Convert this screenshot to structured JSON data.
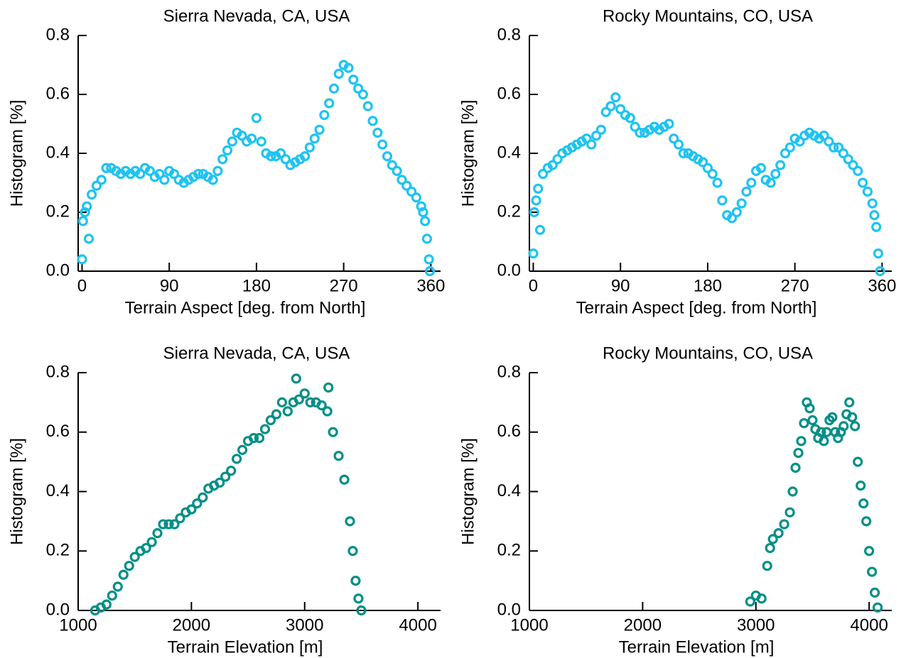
{
  "chart_data": [
    {
      "type": "scatter",
      "title": "Sierra Nevada, CA, USA",
      "x_label": "Terrain Aspect [deg. from North]",
      "y_label": "Histogram [%]",
      "color": "#1ec3f2",
      "x": [
        0,
        1,
        3,
        5,
        7,
        10,
        15,
        20,
        25,
        30,
        35,
        40,
        45,
        50,
        55,
        60,
        65,
        70,
        75,
        80,
        85,
        90,
        95,
        100,
        105,
        110,
        115,
        120,
        125,
        130,
        135,
        140,
        145,
        150,
        155,
        160,
        165,
        170,
        175,
        180,
        185,
        190,
        195,
        200,
        205,
        210,
        215,
        220,
        225,
        230,
        235,
        240,
        245,
        250,
        255,
        260,
        265,
        270,
        275,
        280,
        285,
        290,
        295,
        300,
        305,
        310,
        315,
        320,
        325,
        330,
        335,
        340,
        345,
        350,
        352,
        354,
        356,
        358,
        359
      ],
      "values": [
        0.04,
        0.17,
        0.2,
        0.22,
        0.11,
        0.26,
        0.29,
        0.31,
        0.35,
        0.35,
        0.34,
        0.33,
        0.34,
        0.33,
        0.34,
        0.33,
        0.35,
        0.34,
        0.32,
        0.33,
        0.31,
        0.34,
        0.33,
        0.31,
        0.3,
        0.31,
        0.32,
        0.33,
        0.33,
        0.32,
        0.31,
        0.34,
        0.38,
        0.41,
        0.44,
        0.47,
        0.46,
        0.44,
        0.45,
        0.52,
        0.44,
        0.4,
        0.39,
        0.39,
        0.4,
        0.38,
        0.36,
        0.37,
        0.38,
        0.39,
        0.42,
        0.45,
        0.48,
        0.53,
        0.57,
        0.62,
        0.67,
        0.7,
        0.69,
        0.65,
        0.62,
        0.6,
        0.56,
        0.51,
        0.47,
        0.43,
        0.39,
        0.36,
        0.34,
        0.31,
        0.29,
        0.27,
        0.25,
        0.22,
        0.2,
        0.17,
        0.11,
        0.04,
        0.0
      ],
      "xlim": [
        -4,
        370
      ],
      "xticks": [
        0,
        90,
        180,
        270,
        360
      ],
      "ylim": [
        0,
        0.8
      ],
      "yticks": [
        {
          "value": 0,
          "label": "0.0"
        },
        0.2,
        0.4,
        0.6,
        0.8
      ]
    },
    {
      "type": "scatter",
      "title": "Rocky Mountains, CO, USA",
      "x_label": "Terrain Aspect [deg. from North]",
      "y_label": "Histogram [%]",
      "color": "#1ec3f2",
      "x": [
        0,
        1,
        3,
        5,
        7,
        10,
        15,
        20,
        25,
        30,
        35,
        40,
        45,
        50,
        55,
        60,
        65,
        70,
        75,
        80,
        85,
        90,
        95,
        100,
        105,
        110,
        115,
        120,
        125,
        130,
        135,
        140,
        145,
        150,
        155,
        160,
        165,
        170,
        175,
        180,
        185,
        190,
        195,
        200,
        205,
        210,
        215,
        220,
        225,
        230,
        235,
        240,
        245,
        250,
        255,
        260,
        265,
        270,
        275,
        280,
        285,
        290,
        295,
        300,
        305,
        310,
        315,
        320,
        325,
        330,
        335,
        340,
        345,
        350,
        352,
        354,
        356,
        358
      ],
      "values": [
        0.06,
        0.2,
        0.24,
        0.28,
        0.14,
        0.33,
        0.35,
        0.36,
        0.38,
        0.4,
        0.41,
        0.42,
        0.43,
        0.44,
        0.45,
        0.43,
        0.46,
        0.48,
        0.54,
        0.56,
        0.59,
        0.55,
        0.53,
        0.52,
        0.49,
        0.47,
        0.47,
        0.48,
        0.49,
        0.48,
        0.49,
        0.5,
        0.45,
        0.43,
        0.4,
        0.4,
        0.39,
        0.38,
        0.37,
        0.35,
        0.33,
        0.3,
        0.24,
        0.19,
        0.18,
        0.2,
        0.23,
        0.27,
        0.3,
        0.34,
        0.35,
        0.31,
        0.3,
        0.33,
        0.36,
        0.4,
        0.42,
        0.45,
        0.44,
        0.46,
        0.47,
        0.46,
        0.45,
        0.46,
        0.44,
        0.42,
        0.42,
        0.4,
        0.38,
        0.36,
        0.34,
        0.3,
        0.27,
        0.23,
        0.19,
        0.15,
        0.06,
        0.0
      ],
      "xlim": [
        -4,
        370
      ],
      "xticks": [
        0,
        90,
        180,
        270,
        360
      ],
      "ylim": [
        0,
        0.8
      ],
      "yticks": [
        {
          "value": 0,
          "label": "0.0"
        },
        0.2,
        0.4,
        0.6,
        0.8
      ]
    },
    {
      "type": "scatter",
      "title": "Sierra Nevada, CA, USA",
      "x_label": "Terrain Elevation [m]",
      "y_label": "Histogram [%]",
      "color": "#008f87",
      "x": [
        1150,
        1200,
        1250,
        1300,
        1350,
        1400,
        1450,
        1500,
        1550,
        1600,
        1650,
        1700,
        1750,
        1800,
        1850,
        1900,
        1950,
        2000,
        2050,
        2100,
        2150,
        2200,
        2250,
        2300,
        2350,
        2400,
        2450,
        2500,
        2550,
        2600,
        2650,
        2700,
        2750,
        2800,
        2850,
        2900,
        2925,
        2950,
        3000,
        3050,
        3100,
        3150,
        3200,
        3210,
        3250,
        3300,
        3350,
        3400,
        3425,
        3450,
        3475,
        3500
      ],
      "values": [
        0.0,
        0.01,
        0.02,
        0.05,
        0.08,
        0.12,
        0.15,
        0.18,
        0.2,
        0.21,
        0.23,
        0.26,
        0.29,
        0.29,
        0.29,
        0.31,
        0.33,
        0.34,
        0.36,
        0.38,
        0.41,
        0.42,
        0.43,
        0.45,
        0.47,
        0.51,
        0.54,
        0.57,
        0.58,
        0.58,
        0.61,
        0.64,
        0.66,
        0.7,
        0.67,
        0.7,
        0.78,
        0.71,
        0.73,
        0.7,
        0.7,
        0.69,
        0.67,
        0.75,
        0.6,
        0.52,
        0.44,
        0.3,
        0.2,
        0.1,
        0.04,
        0.0
      ],
      "xlim": [
        1000,
        4200
      ],
      "xticks": [
        1000,
        2000,
        3000,
        4000
      ],
      "ylim": [
        0,
        0.8
      ],
      "yticks": [
        {
          "value": 0,
          "label": "0.0"
        },
        0.2,
        0.4,
        0.6,
        0.8
      ]
    },
    {
      "type": "scatter",
      "title": "Rocky Mountains, CO, USA",
      "x_label": "Terrain Elevation [m]",
      "y_label": "Histogram [%]",
      "color": "#008f87",
      "x": [
        2950,
        3000,
        3050,
        3100,
        3125,
        3150,
        3200,
        3250,
        3300,
        3325,
        3350,
        3375,
        3400,
        3425,
        3450,
        3475,
        3500,
        3525,
        3550,
        3575,
        3600,
        3625,
        3650,
        3675,
        3700,
        3725,
        3750,
        3775,
        3800,
        3825,
        3850,
        3875,
        3900,
        3925,
        3950,
        3975,
        4000,
        4025,
        4050,
        4075
      ],
      "values": [
        0.03,
        0.05,
        0.04,
        0.15,
        0.21,
        0.24,
        0.26,
        0.29,
        0.33,
        0.4,
        0.48,
        0.53,
        0.57,
        0.63,
        0.7,
        0.68,
        0.64,
        0.61,
        0.58,
        0.6,
        0.57,
        0.6,
        0.64,
        0.65,
        0.6,
        0.58,
        0.6,
        0.62,
        0.66,
        0.7,
        0.65,
        0.62,
        0.5,
        0.42,
        0.36,
        0.3,
        0.2,
        0.13,
        0.06,
        0.01
      ],
      "xlim": [
        1000,
        4200
      ],
      "xticks": [
        1000,
        2000,
        3000,
        4000
      ],
      "ylim": [
        0,
        0.8
      ],
      "yticks": [
        {
          "value": 0,
          "label": "0.0"
        },
        0.2,
        0.4,
        0.6,
        0.8
      ]
    }
  ]
}
